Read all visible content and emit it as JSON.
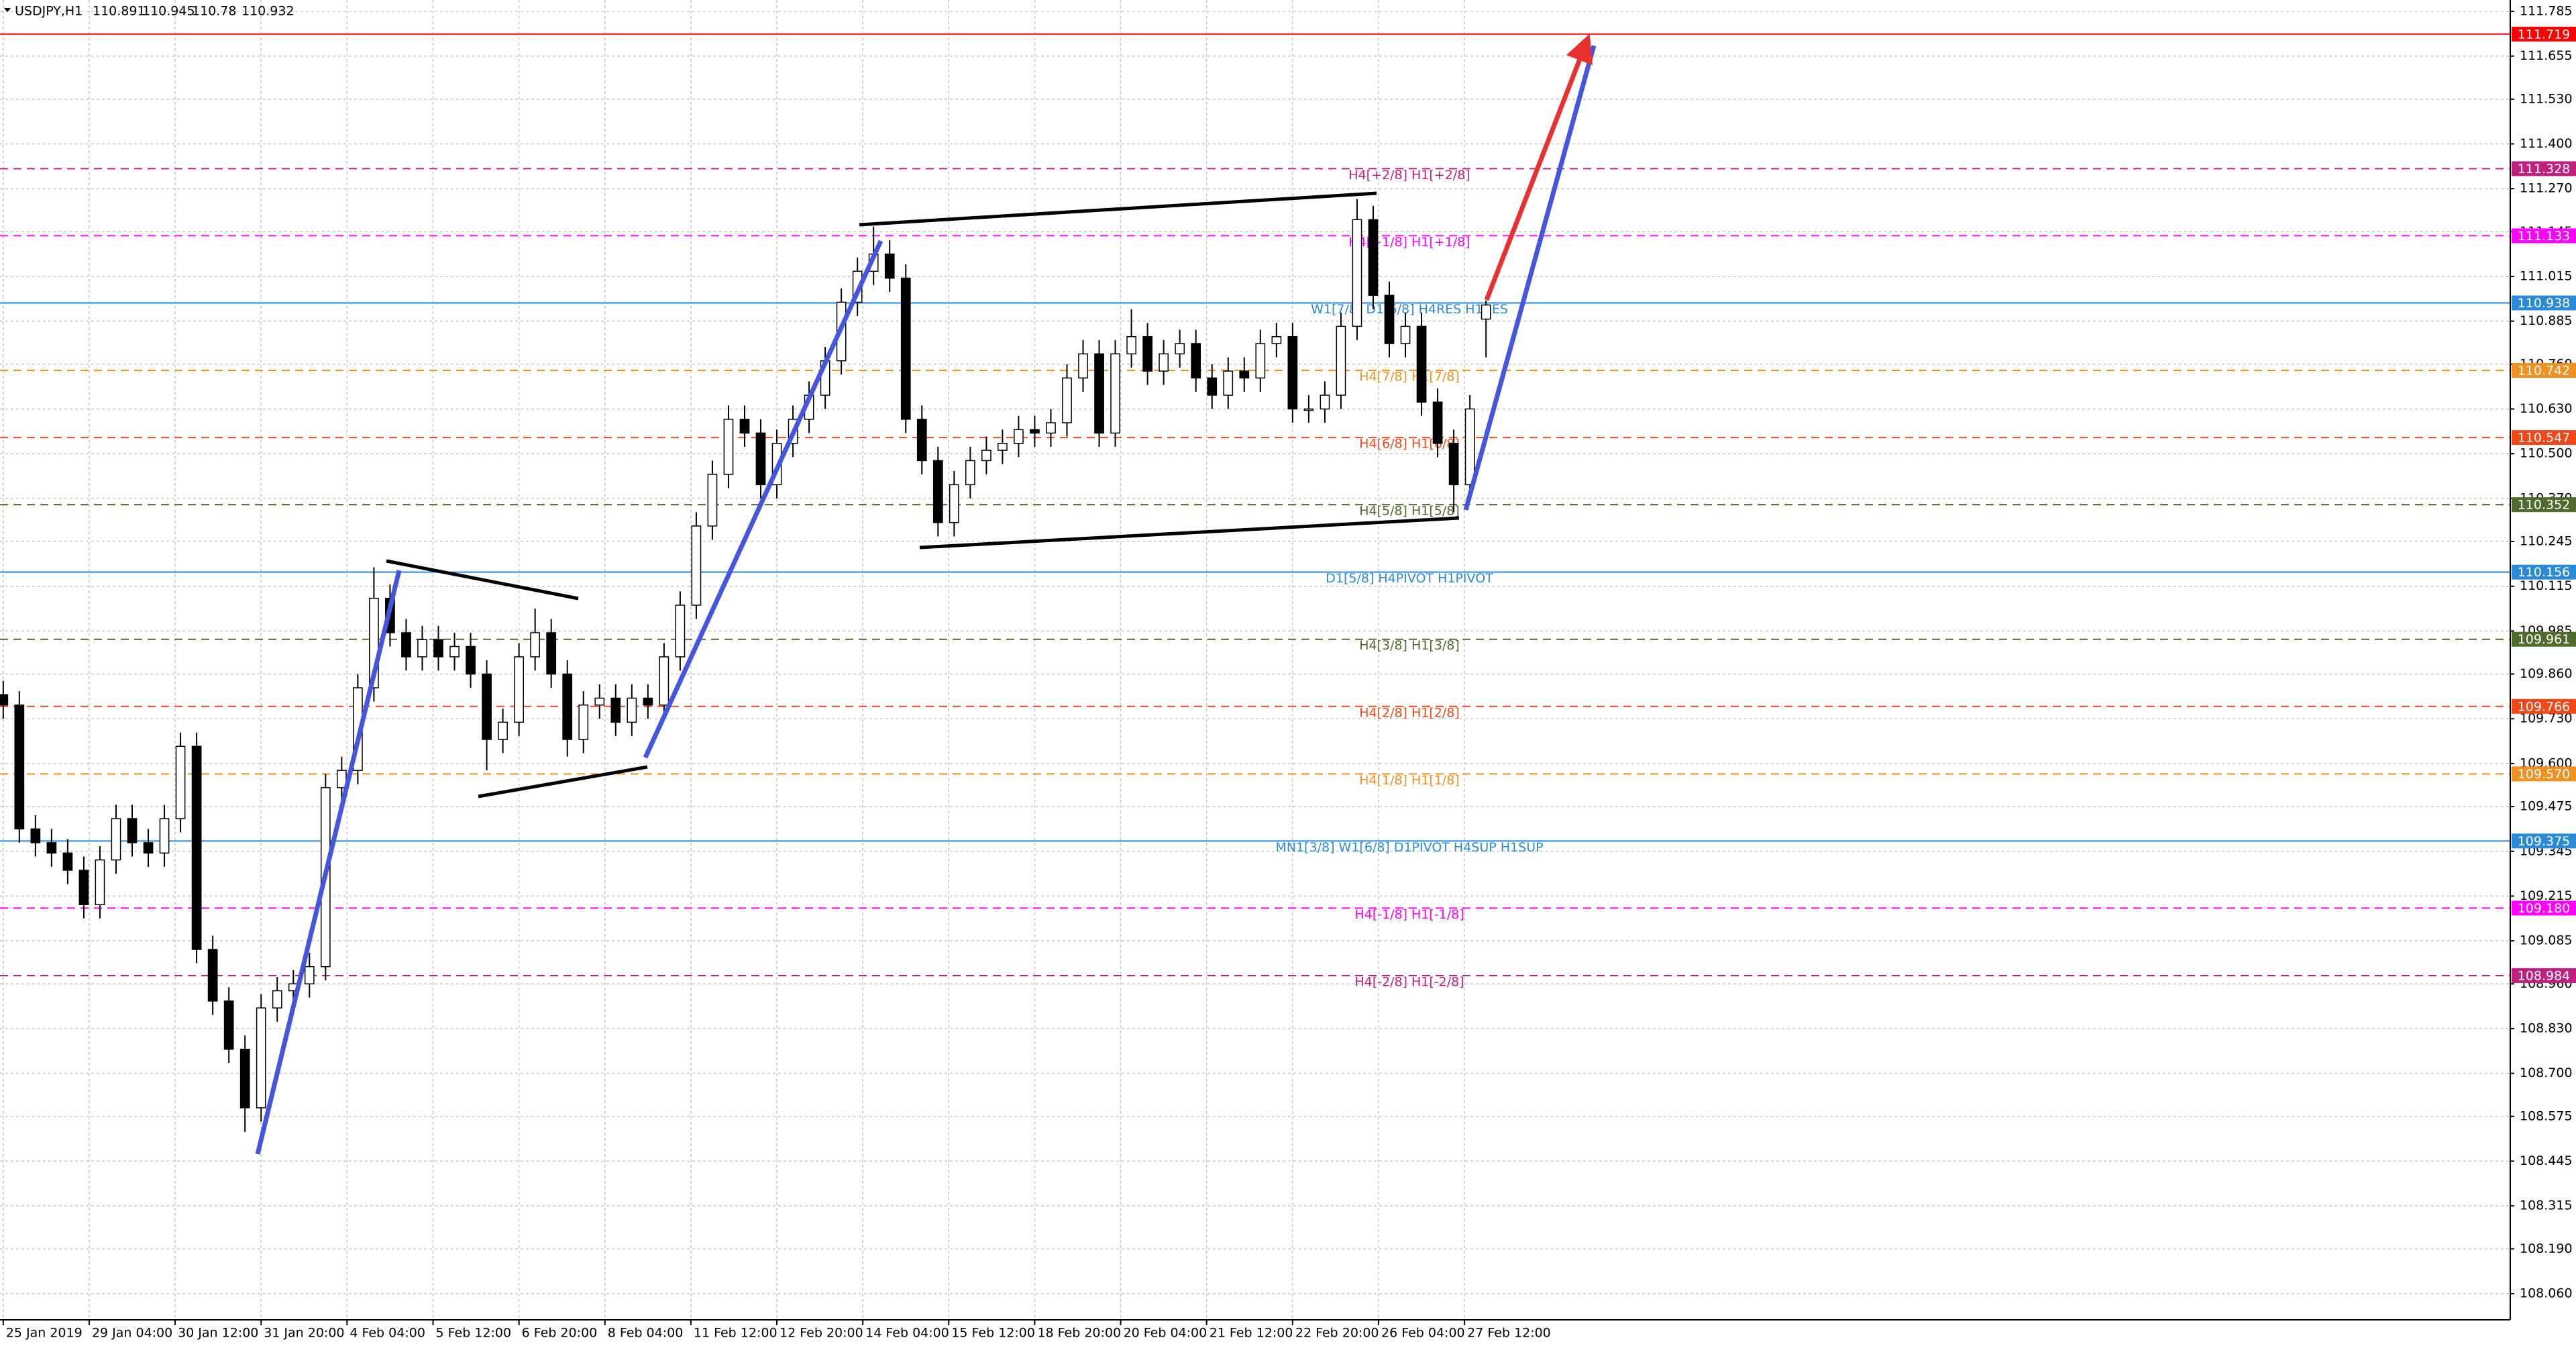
{
  "chart_data": {
    "type": "candlestick",
    "title": "USDJPY,H1",
    "up_color": "#ffffff",
    "down_color": "#000000",
    "outline_color": "#000000",
    "grid": true,
    "xlim": [
      -1.2,
      933.3
    ],
    "ylim": [
      107.984,
      111.818
    ],
    "xticks": [
      {
        "value": 0,
        "label": "25 Jan 2019"
      },
      {
        "value": 32,
        "label": "29 Jan 04:00"
      },
      {
        "value": 64,
        "label": "30 Jan 12:00"
      },
      {
        "value": 96,
        "label": "31 Jan 20:00"
      },
      {
        "value": 128,
        "label": "4 Feb 04:00"
      },
      {
        "value": 160,
        "label": "5 Feb 12:00"
      },
      {
        "value": 192,
        "label": "6 Feb 20:00"
      },
      {
        "value": 224,
        "label": "8 Feb 04:00"
      },
      {
        "value": 256,
        "label": "11 Feb 12:00"
      },
      {
        "value": 288,
        "label": "12 Feb 20:00"
      },
      {
        "value": 320,
        "label": "14 Feb 04:00"
      },
      {
        "value": 352,
        "label": "15 Feb 12:00"
      },
      {
        "value": 384,
        "label": "18 Feb 20:00"
      },
      {
        "value": 416,
        "label": "20 Feb 04:00"
      },
      {
        "value": 448,
        "label": "21 Feb 12:00"
      },
      {
        "value": 480,
        "label": "22 Feb 20:00"
      },
      {
        "value": 512,
        "label": "26 Feb 04:00"
      },
      {
        "value": 544,
        "label": "27 Feb 12:00"
      }
    ],
    "yticks": [
      111.785,
      111.655,
      {
        "value": 111.53,
        "label": "111.530"
      },
      {
        "value": 111.4,
        "label": "111.400"
      },
      {
        "value": 111.27,
        "label": "111.270"
      },
      111.145,
      111.015,
      110.885,
      {
        "value": 110.76,
        "label": "110.760"
      },
      {
        "value": 110.63,
        "label": "110.630"
      },
      {
        "value": 110.5,
        "label": "110.500"
      },
      {
        "value": 110.37,
        "label": "110.370"
      },
      110.245,
      110.115,
      109.985,
      {
        "value": 109.86,
        "label": "109.860"
      },
      {
        "value": 109.73,
        "label": "109.730"
      },
      {
        "value": 109.6,
        "label": "109.600"
      },
      109.475,
      109.345,
      109.215,
      109.085,
      {
        "value": 108.96,
        "label": "108.960"
      },
      {
        "value": 108.83,
        "label": "108.830"
      },
      {
        "value": 108.7,
        "label": "108.700"
      },
      108.575,
      108.445,
      108.315,
      {
        "value": 108.19,
        "label": "108.190"
      },
      {
        "value": 108.06,
        "label": "108.060"
      }
    ],
    "x": [
      0,
      6,
      12,
      18,
      24,
      30,
      36,
      42,
      48,
      54,
      60,
      66,
      72,
      78,
      84,
      90,
      96,
      102,
      108,
      114,
      120,
      126,
      132,
      138,
      144,
      150,
      156,
      162,
      168,
      174,
      180,
      186,
      192,
      198,
      204,
      210,
      216,
      222,
      228,
      234,
      240,
      246,
      252,
      258,
      264,
      270,
      276,
      282,
      288,
      294,
      300,
      306,
      312,
      318,
      324,
      330,
      336,
      342,
      348,
      354,
      360,
      366,
      372,
      378,
      384,
      390,
      396,
      402,
      408,
      414,
      420,
      426,
      432,
      438,
      444,
      450,
      456,
      462,
      468,
      474,
      480,
      486,
      492,
      498,
      504,
      510,
      516,
      522,
      528,
      534,
      540,
      546,
      552
    ],
    "ohlc": [
      [
        109.8,
        109.84,
        109.73,
        109.77
      ],
      [
        109.77,
        109.81,
        109.37,
        109.41
      ],
      [
        109.41,
        109.45,
        109.33,
        109.37
      ],
      [
        109.37,
        109.41,
        109.3,
        109.34
      ],
      [
        109.34,
        109.38,
        109.25,
        109.29
      ],
      [
        109.29,
        109.33,
        109.15,
        109.19
      ],
      [
        109.19,
        109.36,
        109.15,
        109.32
      ],
      [
        109.32,
        109.48,
        109.28,
        109.44
      ],
      [
        109.44,
        109.48,
        109.33,
        109.37
      ],
      [
        109.37,
        109.41,
        109.3,
        109.34
      ],
      [
        109.34,
        109.48,
        109.3,
        109.44
      ],
      [
        109.44,
        109.69,
        109.4,
        109.65
      ],
      [
        109.65,
        109.69,
        109.02,
        109.06
      ],
      [
        109.06,
        109.1,
        108.87,
        108.91
      ],
      [
        108.91,
        108.95,
        108.73,
        108.77
      ],
      [
        108.77,
        108.81,
        108.53,
        108.6
      ],
      [
        108.6,
        108.93,
        108.56,
        108.89
      ],
      [
        108.89,
        108.98,
        108.85,
        108.94
      ],
      [
        108.94,
        109.0,
        108.9,
        108.96
      ],
      [
        108.96,
        109.05,
        108.92,
        109.01
      ],
      [
        109.01,
        109.57,
        108.97,
        109.53
      ],
      [
        109.53,
        109.62,
        109.49,
        109.58
      ],
      [
        109.58,
        109.86,
        109.54,
        109.82
      ],
      [
        109.82,
        110.17,
        109.78,
        110.08
      ],
      [
        110.08,
        110.12,
        109.94,
        109.98
      ],
      [
        109.98,
        110.02,
        109.87,
        109.91
      ],
      [
        109.91,
        110.0,
        109.87,
        109.96
      ],
      [
        109.96,
        110.0,
        109.87,
        109.91
      ],
      [
        109.91,
        109.98,
        109.87,
        109.94
      ],
      [
        109.94,
        109.98,
        109.82,
        109.86
      ],
      [
        109.86,
        109.9,
        109.58,
        109.67
      ],
      [
        109.67,
        109.76,
        109.63,
        109.72
      ],
      [
        109.72,
        109.95,
        109.68,
        109.91
      ],
      [
        109.91,
        110.05,
        109.87,
        109.98
      ],
      [
        109.98,
        110.02,
        109.82,
        109.86
      ],
      [
        109.86,
        109.9,
        109.62,
        109.67
      ],
      [
        109.67,
        109.81,
        109.63,
        109.77
      ],
      [
        109.77,
        109.83,
        109.73,
        109.79
      ],
      [
        109.79,
        109.83,
        109.68,
        109.72
      ],
      [
        109.72,
        109.83,
        109.68,
        109.79
      ],
      [
        109.79,
        109.83,
        109.73,
        109.77
      ],
      [
        109.77,
        109.95,
        109.73,
        109.91
      ],
      [
        109.91,
        110.1,
        109.87,
        110.06
      ],
      [
        110.06,
        110.33,
        110.02,
        110.29
      ],
      [
        110.29,
        110.48,
        110.25,
        110.44
      ],
      [
        110.44,
        110.64,
        110.4,
        110.6
      ],
      [
        110.6,
        110.64,
        110.52,
        110.56
      ],
      [
        110.56,
        110.6,
        110.37,
        110.41
      ],
      [
        110.41,
        110.57,
        110.37,
        110.53
      ],
      [
        110.53,
        110.64,
        110.49,
        110.6
      ],
      [
        110.6,
        110.71,
        110.56,
        110.67
      ],
      [
        110.67,
        110.81,
        110.63,
        110.77
      ],
      [
        110.77,
        110.98,
        110.73,
        110.94
      ],
      [
        110.94,
        111.07,
        110.9,
        111.03
      ],
      [
        111.03,
        111.16,
        110.99,
        111.08
      ],
      [
        111.08,
        111.12,
        110.97,
        111.01
      ],
      [
        111.01,
        111.05,
        110.56,
        110.6
      ],
      [
        110.6,
        110.64,
        110.44,
        110.48
      ],
      [
        110.48,
        110.52,
        110.26,
        110.3
      ],
      [
        110.3,
        110.45,
        110.26,
        110.41
      ],
      [
        110.41,
        110.52,
        110.37,
        110.48
      ],
      [
        110.48,
        110.55,
        110.44,
        110.51
      ],
      [
        110.51,
        110.57,
        110.47,
        110.53
      ],
      [
        110.53,
        110.61,
        110.49,
        110.57
      ],
      [
        110.57,
        110.61,
        110.52,
        110.56
      ],
      [
        110.56,
        110.63,
        110.52,
        110.59
      ],
      [
        110.59,
        110.76,
        110.55,
        110.72
      ],
      [
        110.72,
        110.83,
        110.68,
        110.79
      ],
      [
        110.79,
        110.83,
        110.52,
        110.56
      ],
      [
        110.56,
        110.83,
        110.52,
        110.79
      ],
      [
        110.79,
        110.92,
        110.75,
        110.84
      ],
      [
        110.84,
        110.88,
        110.7,
        110.74
      ],
      [
        110.74,
        110.83,
        110.7,
        110.79
      ],
      [
        110.79,
        110.86,
        110.75,
        110.82
      ],
      [
        110.82,
        110.86,
        110.68,
        110.72
      ],
      [
        110.72,
        110.76,
        110.63,
        110.67
      ],
      [
        110.67,
        110.78,
        110.63,
        110.74
      ],
      [
        110.74,
        110.78,
        110.68,
        110.72
      ],
      [
        110.72,
        110.86,
        110.68,
        110.82
      ],
      [
        110.82,
        110.88,
        110.78,
        110.84
      ],
      [
        110.84,
        110.88,
        110.59,
        110.63
      ],
      [
        110.63,
        110.67,
        110.59,
        110.63
      ],
      [
        110.63,
        110.71,
        110.59,
        110.67
      ],
      [
        110.67,
        110.91,
        110.63,
        110.87
      ],
      [
        110.87,
        111.24,
        110.83,
        111.18
      ],
      [
        111.18,
        111.22,
        110.92,
        110.96
      ],
      [
        110.96,
        111.0,
        110.78,
        110.82
      ],
      [
        110.82,
        110.91,
        110.78,
        110.87
      ],
      [
        110.87,
        110.91,
        110.61,
        110.65
      ],
      [
        110.65,
        110.69,
        110.49,
        110.53
      ],
      [
        110.53,
        110.57,
        110.33,
        110.41
      ],
      [
        110.41,
        110.67,
        110.37,
        110.63
      ],
      [
        110.891,
        110.945,
        110.78,
        110.932
      ]
    ],
    "levels": [
      {
        "value": 111.719,
        "color": "#ff0000",
        "dashed": false
      },
      {
        "value": 111.328,
        "label": "H4[+2/8] H1[+2/8]",
        "color": "#c02080",
        "dashed": true
      },
      {
        "value": 111.133,
        "label": "H4[+1/8] H1[+1/8]",
        "color": "#ff00ff",
        "dashed": true
      },
      {
        "value": 110.938,
        "label": "W1[7/8] D1[6/8] H4RES H1RES",
        "color": "#2a8ad8",
        "dashed": false
      },
      {
        "value": 110.742,
        "label": "H4[7/8] H1[7/8]",
        "color": "#f09020",
        "dashed": true
      },
      {
        "value": 110.547,
        "label": "H4[6/8] H1[6/8]",
        "color": "#f04818",
        "dashed": true
      },
      {
        "value": 110.352,
        "label": "H4[5/8] H1[5/8]",
        "color": "#4e6a2c",
        "dashed": true
      },
      {
        "value": 110.156,
        "label": "D1[5/8] H4PIVOT H1PIVOT",
        "color": "#2a8ad8",
        "dashed": false
      },
      {
        "value": 109.961,
        "label": "H4[3/8] H1[3/8]",
        "color": "#4e6a2c",
        "dashed": true
      },
      {
        "value": 109.766,
        "label": "H4[2/8] H1[2/8]",
        "color": "#f04818",
        "dashed": true
      },
      {
        "value": 109.57,
        "value_label": "109.570",
        "label": "H4[1/8] H1[1/8]",
        "color": "#f09020",
        "dashed": true
      },
      {
        "value": 109.375,
        "label": "MN1[3/8] W1[6/8] D1PIVOT H4SUP H1SUP",
        "color": "#2a8ad8",
        "dashed": false
      },
      {
        "value": 109.18,
        "value_label": "109.180",
        "label": "H4[-1/8] H1[-1/8]",
        "color": "#ff00ff",
        "dashed": true
      },
      {
        "value": 108.984,
        "label": "H4[-2/8] H1[-2/8]",
        "color": "#c02080",
        "dashed": true
      }
    ]
  }
}
